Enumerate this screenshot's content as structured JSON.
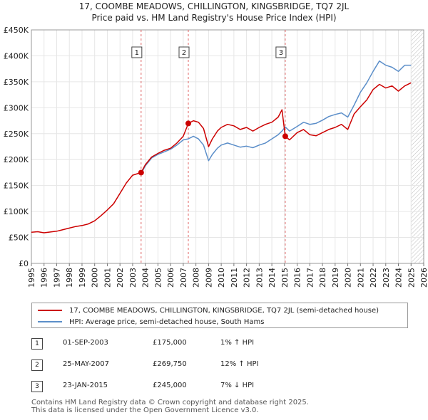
{
  "chart_data": {
    "type": "line",
    "title": "17, COOMBE MEADOWS, CHILLINGTON, KINGSBRIDGE, TQ7 2JL",
    "subtitle": "Price paid vs. HM Land Registry's House Price Index (HPI)",
    "xlim": [
      1995,
      2026
    ],
    "ylim": [
      0,
      450000
    ],
    "x_ticks": [
      "1995",
      "1996",
      "1997",
      "1998",
      "1999",
      "2000",
      "2001",
      "2002",
      "2003",
      "2004",
      "2005",
      "2006",
      "2007",
      "2008",
      "2009",
      "2010",
      "2011",
      "2012",
      "2013",
      "2014",
      "2015",
      "2016",
      "2017",
      "2018",
      "2019",
      "2020",
      "2021",
      "2022",
      "2023",
      "2024",
      "2025",
      "2026"
    ],
    "y_ticks": [
      {
        "value": 0,
        "label": "£0"
      },
      {
        "value": 50000,
        "label": "£50K"
      },
      {
        "value": 100000,
        "label": "£100K"
      },
      {
        "value": 150000,
        "label": "£150K"
      },
      {
        "value": 200000,
        "label": "£200K"
      },
      {
        "value": 250000,
        "label": "£250K"
      },
      {
        "value": 300000,
        "label": "£300K"
      },
      {
        "value": 350000,
        "label": "£350K"
      },
      {
        "value": 400000,
        "label": "£400K"
      },
      {
        "value": 450000,
        "label": "£450K"
      }
    ],
    "series": [
      {
        "name": "17, COOMBE MEADOWS, CHILLINGTON, KINGSBRIDGE, TQ7 2JL (semi-detached house)",
        "color": "#cc0000",
        "points": [
          [
            1995.0,
            60000
          ],
          [
            1995.5,
            61000
          ],
          [
            1996.0,
            59000
          ],
          [
            1996.5,
            60500
          ],
          [
            1997.0,
            62000
          ],
          [
            1997.5,
            65000
          ],
          [
            1998.0,
            68000
          ],
          [
            1998.5,
            71000
          ],
          [
            1999.0,
            73000
          ],
          [
            1999.5,
            76000
          ],
          [
            2000.0,
            82000
          ],
          [
            2000.5,
            92000
          ],
          [
            2001.0,
            103000
          ],
          [
            2001.5,
            115000
          ],
          [
            2002.0,
            135000
          ],
          [
            2002.5,
            155000
          ],
          [
            2003.0,
            170000
          ],
          [
            2003.67,
            175000
          ],
          [
            2004.0,
            190000
          ],
          [
            2004.5,
            205000
          ],
          [
            2005.0,
            212000
          ],
          [
            2005.5,
            218000
          ],
          [
            2006.0,
            222000
          ],
          [
            2006.5,
            232000
          ],
          [
            2007.0,
            245000
          ],
          [
            2007.4,
            269750
          ],
          [
            2007.8,
            275000
          ],
          [
            2008.2,
            272000
          ],
          [
            2008.6,
            260000
          ],
          [
            2009.0,
            225000
          ],
          [
            2009.3,
            240000
          ],
          [
            2009.7,
            255000
          ],
          [
            2010.0,
            262000
          ],
          [
            2010.5,
            268000
          ],
          [
            2011.0,
            265000
          ],
          [
            2011.5,
            258000
          ],
          [
            2012.0,
            262000
          ],
          [
            2012.5,
            255000
          ],
          [
            2013.0,
            262000
          ],
          [
            2013.5,
            268000
          ],
          [
            2014.0,
            272000
          ],
          [
            2014.5,
            282000
          ],
          [
            2014.8,
            296000
          ],
          [
            2015.06,
            245000
          ],
          [
            2015.4,
            238000
          ],
          [
            2016.0,
            252000
          ],
          [
            2016.5,
            258000
          ],
          [
            2017.0,
            248000
          ],
          [
            2017.5,
            246000
          ],
          [
            2018.0,
            252000
          ],
          [
            2018.5,
            258000
          ],
          [
            2019.0,
            262000
          ],
          [
            2019.5,
            268000
          ],
          [
            2020.0,
            258000
          ],
          [
            2020.5,
            288000
          ],
          [
            2021.0,
            302000
          ],
          [
            2021.5,
            315000
          ],
          [
            2022.0,
            335000
          ],
          [
            2022.5,
            345000
          ],
          [
            2023.0,
            338000
          ],
          [
            2023.5,
            342000
          ],
          [
            2024.0,
            332000
          ],
          [
            2024.5,
            342000
          ],
          [
            2025.0,
            348000
          ]
        ]
      },
      {
        "name": "HPI: Average price, semi-detached house, South Hams",
        "color": "#5b8ec9",
        "points": [
          [
            2003.67,
            173000
          ],
          [
            2004.0,
            188000
          ],
          [
            2004.5,
            203000
          ],
          [
            2005.0,
            210000
          ],
          [
            2005.5,
            215000
          ],
          [
            2006.0,
            220000
          ],
          [
            2006.5,
            228000
          ],
          [
            2007.0,
            238000
          ],
          [
            2007.4,
            240000
          ],
          [
            2007.8,
            245000
          ],
          [
            2008.2,
            240000
          ],
          [
            2008.6,
            228000
          ],
          [
            2009.0,
            198000
          ],
          [
            2009.3,
            210000
          ],
          [
            2009.7,
            222000
          ],
          [
            2010.0,
            228000
          ],
          [
            2010.5,
            232000
          ],
          [
            2011.0,
            228000
          ],
          [
            2011.5,
            224000
          ],
          [
            2012.0,
            226000
          ],
          [
            2012.5,
            223000
          ],
          [
            2013.0,
            228000
          ],
          [
            2013.5,
            232000
          ],
          [
            2014.0,
            240000
          ],
          [
            2014.5,
            248000
          ],
          [
            2014.8,
            255000
          ],
          [
            2015.06,
            263000
          ],
          [
            2015.4,
            255000
          ],
          [
            2016.0,
            264000
          ],
          [
            2016.5,
            272000
          ],
          [
            2017.0,
            268000
          ],
          [
            2017.5,
            270000
          ],
          [
            2018.0,
            276000
          ],
          [
            2018.5,
            283000
          ],
          [
            2019.0,
            287000
          ],
          [
            2019.5,
            290000
          ],
          [
            2020.0,
            282000
          ],
          [
            2020.5,
            305000
          ],
          [
            2021.0,
            330000
          ],
          [
            2021.5,
            348000
          ],
          [
            2022.0,
            370000
          ],
          [
            2022.5,
            390000
          ],
          [
            2023.0,
            382000
          ],
          [
            2023.5,
            378000
          ],
          [
            2024.0,
            370000
          ],
          [
            2024.5,
            382000
          ],
          [
            2025.0,
            382000
          ]
        ]
      }
    ],
    "transactions": [
      {
        "num": "1",
        "x": 2003.67,
        "price": 175000,
        "date": "01-SEP-2003",
        "price_label": "£175,000",
        "hpi": "1% ↑ HPI"
      },
      {
        "num": "2",
        "x": 2007.4,
        "price": 269750,
        "date": "25-MAY-2007",
        "price_label": "£269,750",
        "hpi": "12% ↑ HPI"
      },
      {
        "num": "3",
        "x": 2015.06,
        "price": 245000,
        "date": "23-JAN-2015",
        "price_label": "£245,000",
        "hpi": "7% ↓ HPI"
      }
    ],
    "hatched_from": 2025.0,
    "legend_position": "below-chart"
  },
  "footer": {
    "line1": "Contains HM Land Registry data © Crown copyright and database right 2025.",
    "line2": "This data is licensed under the Open Government Licence v3.0."
  }
}
